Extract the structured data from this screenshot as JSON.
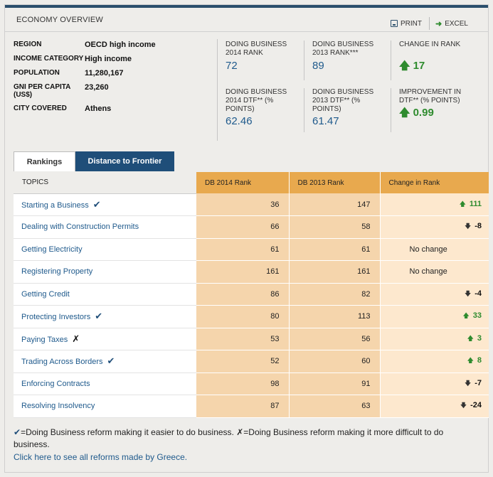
{
  "header": {
    "title": "ECONOMY OVERVIEW",
    "print_label": "PRINT",
    "excel_label": "EXCEL"
  },
  "info": [
    {
      "label": "REGION",
      "value": "OECD high income"
    },
    {
      "label": "INCOME CATEGORY",
      "value": "High income"
    },
    {
      "label": "POPULATION",
      "value": "11,280,167"
    },
    {
      "label": "GNI PER CAPITA (US$)",
      "value": "23,260"
    },
    {
      "label": "CITY COVERED",
      "value": "Athens"
    }
  ],
  "stats": [
    {
      "label": "DOING BUSINESS 2014 RANK",
      "value": "72"
    },
    {
      "label": "DOING BUSINESS 2013 RANK***",
      "value": "89"
    },
    {
      "label": "CHANGE IN RANK",
      "value": "17"
    },
    {
      "label": "DOING BUSINESS 2014 DTF** (% POINTS)",
      "value": "62.46"
    },
    {
      "label": "DOING BUSINESS 2013 DTF** (% POINTS)",
      "value": "61.47"
    },
    {
      "label": "IMPROVEMENT IN DTF** (% POINTS)",
      "value": "0.99"
    }
  ],
  "tabs": {
    "rankings": "Rankings",
    "dtf": "Distance to Frontier"
  },
  "table": {
    "headers": {
      "topics": "TOPICS",
      "db2014": "DB 2014 Rank",
      "db2013": "DB 2013 Rank",
      "change": "Change in Rank"
    },
    "rows": [
      {
        "topic": "Starting a Business",
        "mark": "✔",
        "r2014": "36",
        "r2013": "147",
        "change": "111"
      },
      {
        "topic": "Dealing with Construction Permits",
        "mark": "",
        "r2014": "66",
        "r2013": "58",
        "change": "-8"
      },
      {
        "topic": "Getting Electricity",
        "mark": "",
        "r2014": "61",
        "r2013": "61",
        "change": "No change"
      },
      {
        "topic": "Registering Property",
        "mark": "",
        "r2014": "161",
        "r2013": "161",
        "change": "No change"
      },
      {
        "topic": "Getting Credit",
        "mark": "",
        "r2014": "86",
        "r2013": "82",
        "change": "-4"
      },
      {
        "topic": "Protecting Investors",
        "mark": "✔",
        "r2014": "80",
        "r2013": "113",
        "change": "33"
      },
      {
        "topic": "Paying Taxes",
        "mark": "✗",
        "r2014": "53",
        "r2013": "56",
        "change": "3"
      },
      {
        "topic": "Trading Across Borders",
        "mark": "✔",
        "r2014": "52",
        "r2013": "60",
        "change": "8"
      },
      {
        "topic": "Enforcing Contracts",
        "mark": "",
        "r2014": "98",
        "r2013": "91",
        "change": "-7"
      },
      {
        "topic": "Resolving Insolvency",
        "mark": "",
        "r2014": "87",
        "r2013": "63",
        "change": "-24"
      }
    ]
  },
  "footnote": {
    "tick": "✔",
    "positive": "=Doing Business reform making it easier to do business.",
    "cross": "✗",
    "negative": "=Doing Business reform making it more difficult to do business."
  },
  "link": "Click here to see all reforms made by Greece.",
  "colors": {
    "accent": "#1f4e79",
    "header_orange": "#e8a94e",
    "cell_orange": "#f5d5ac",
    "up_green": "#2e8b2e"
  }
}
